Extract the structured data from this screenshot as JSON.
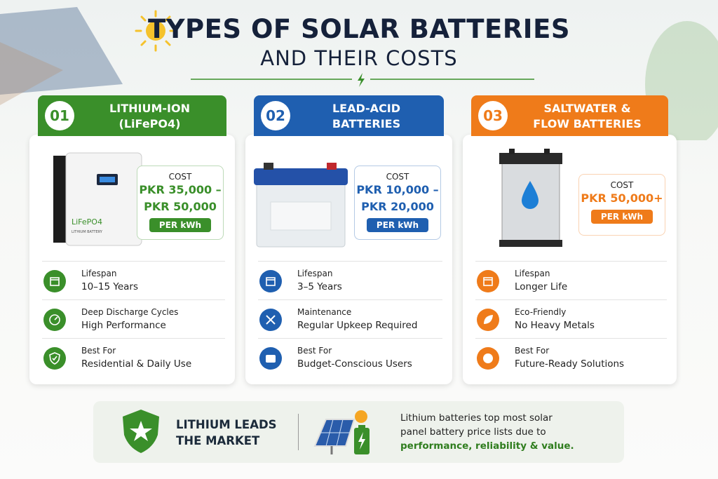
{
  "header": {
    "title": "TYPES OF SOLAR BATTERIES",
    "subtitle": "AND THEIR COSTS"
  },
  "cards": [
    {
      "number": "01",
      "title": [
        "LITHIUM-ION",
        "(LiFePO4)"
      ],
      "product_label": [
        "LiFePO4",
        "LITHIUM BATTERY"
      ],
      "cost_label": "COST",
      "price": [
        "PKR 35,000 –",
        "PKR 50,000"
      ],
      "unit": "PER kWh",
      "features": [
        {
          "label": "Lifespan",
          "value": "10–15 Years"
        },
        {
          "label": "Deep Discharge Cycles",
          "value": "High Performance"
        },
        {
          "label": "Best For",
          "value": "Residential & Daily Use"
        }
      ]
    },
    {
      "number": "02",
      "title": [
        "LEAD-ACID",
        "BATTERIES"
      ],
      "cost_label": "COST",
      "price": [
        "PKR 10,000 –",
        "PKR 20,000"
      ],
      "unit": "PER kWh",
      "features": [
        {
          "label": "Lifespan",
          "value": "3–5 Years"
        },
        {
          "label": "Maintenance",
          "value": "Regular Upkeep Required"
        },
        {
          "label": "Best For",
          "value": "Budget-Conscious Users"
        }
      ]
    },
    {
      "number": "03",
      "title": [
        "SALTWATER &",
        "FLOW BATTERIES"
      ],
      "cost_label": "COST",
      "price": [
        "PKR 50,000+"
      ],
      "unit": "PER kWh",
      "features": [
        {
          "label": "Lifespan",
          "value": "Longer Life"
        },
        {
          "label": "Eco-Friendly",
          "value": "No Heavy Metals"
        },
        {
          "label": "Best For",
          "value": "Future-Ready Solutions"
        }
      ]
    }
  ],
  "footer": {
    "headline": [
      "LITHIUM LEADS",
      "THE MARKET"
    ],
    "text": "Lithium batteries top most solar panel battery price lists due to",
    "highlight": "performance, reliability & value."
  }
}
